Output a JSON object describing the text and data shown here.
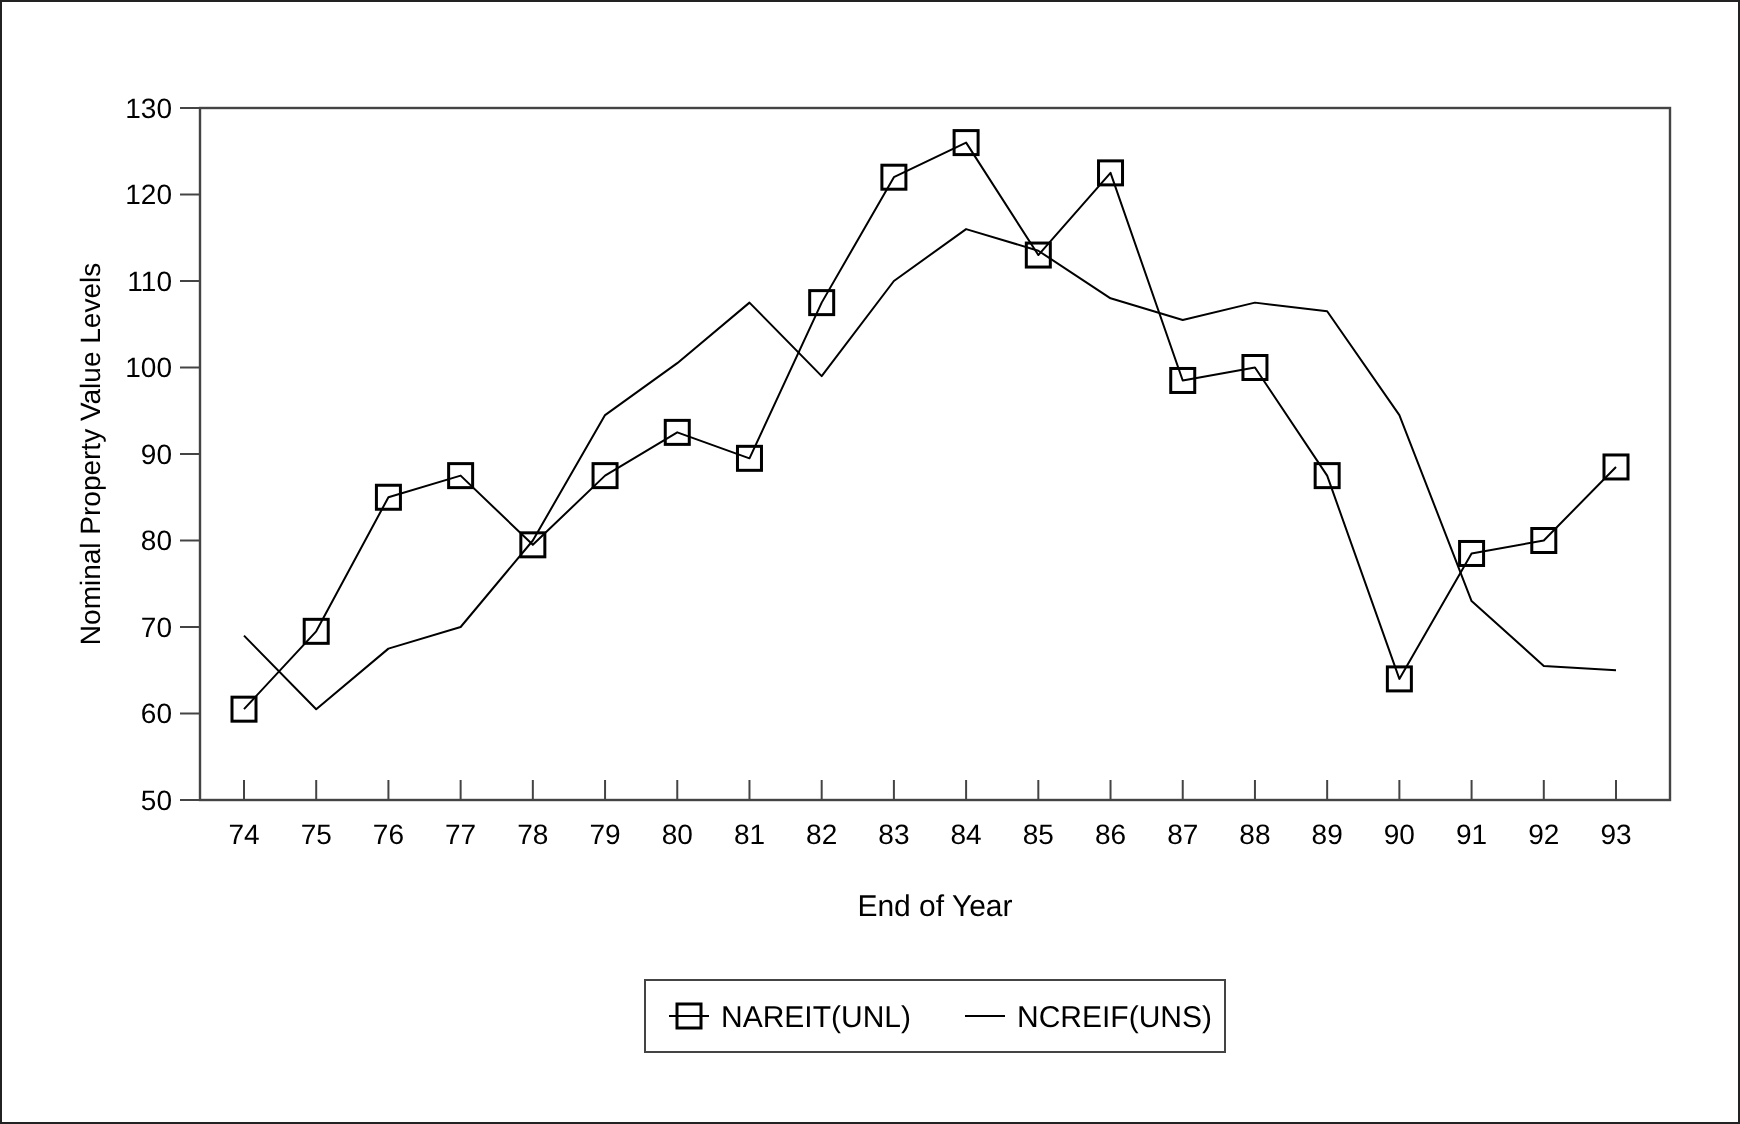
{
  "chart_data": {
    "type": "line",
    "xlabel": "End of Year",
    "ylabel": "Nominal Property Value Levels",
    "categories": [
      "74",
      "75",
      "76",
      "77",
      "78",
      "79",
      "80",
      "81",
      "82",
      "83",
      "84",
      "85",
      "86",
      "87",
      "88",
      "89",
      "90",
      "91",
      "92",
      "93"
    ],
    "series": [
      {
        "name": "NAREIT(UNL)",
        "color": "#000000",
        "marker": "square",
        "values": [
          60.5,
          69.5,
          85,
          87.5,
          79.5,
          87.5,
          92.5,
          89.5,
          107.5,
          122,
          126,
          113,
          122.5,
          98.5,
          100,
          87.5,
          64,
          78.5,
          80,
          88.5
        ]
      },
      {
        "name": "NCREIF(UNS)",
        "color": "#000000",
        "marker": "none",
        "values": [
          69,
          60.5,
          67.5,
          70,
          80,
          94.5,
          100.5,
          107.5,
          99,
          110,
          116,
          113.5,
          108,
          105.5,
          107.5,
          106.5,
          94.5,
          73,
          65.5,
          65
        ]
      }
    ],
    "ylim": [
      50,
      130
    ],
    "yticks": [
      50,
      60,
      70,
      80,
      90,
      100,
      110,
      120,
      130
    ],
    "grid": false,
    "legend": "bottom",
    "line_style": "solid"
  }
}
